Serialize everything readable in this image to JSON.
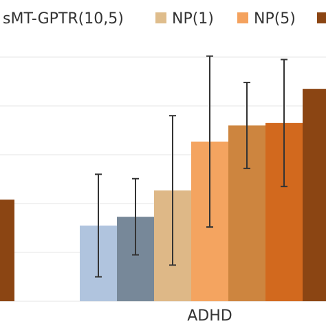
{
  "chart_data": {
    "type": "bar",
    "xlabel": "",
    "ylabel": "",
    "ylim": [
      0,
      5
    ],
    "grid": true,
    "legend_position": "top",
    "categories": [
      "ADHD"
    ],
    "legend": [
      {
        "label": "sMT-GPTR(10,5)",
        "color": "#6f8191",
        "visible_swatch": false
      },
      {
        "label": "NP(1)",
        "color": "#dfbd8c",
        "visible_swatch": true
      },
      {
        "label": "NP(5)",
        "color": "#f4a25e",
        "visible_swatch": true
      },
      {
        "label": "",
        "color": "#8b4513",
        "visible_swatch": true
      }
    ],
    "partial_left_bar": {
      "value": 2.08,
      "color": "#8b4513"
    },
    "series": [
      {
        "color": "#b0c4de",
        "value": 1.55,
        "err": 1.05
      },
      {
        "color": "#778899",
        "value": 1.73,
        "err": 0.78
      },
      {
        "color": "#deb887",
        "value": 2.27,
        "err": 1.53
      },
      {
        "color": "#f4a460",
        "value": 3.27,
        "err": 1.75
      },
      {
        "color": "#cd853f",
        "value": 3.6,
        "err": 0.88
      },
      {
        "color": "#d2691e",
        "value": 3.65,
        "err": 1.3
      },
      {
        "color": "#8b4513",
        "value": 4.35,
        "err": null
      }
    ]
  }
}
